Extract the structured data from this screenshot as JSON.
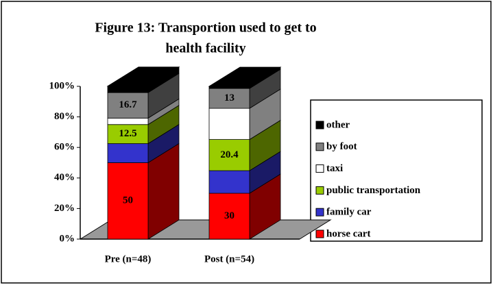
{
  "chart_data": {
    "type": "bar3d_stacked",
    "title": "Figure 13: Transportion used to get to health facility",
    "title_lines": [
      "Figure 13: Transportion used to get to",
      "health facility"
    ],
    "categories": [
      "Pre (n=48)",
      "Post (n=54)"
    ],
    "series": [
      {
        "name": "horse cart",
        "color": "#ff0000",
        "values": [
          50,
          30
        ],
        "value_labels": [
          "50",
          "30"
        ]
      },
      {
        "name": "family car",
        "color": "#3333cc",
        "values": [
          12.5,
          14.8
        ],
        "value_labels": [
          null,
          null
        ]
      },
      {
        "name": "public transportation",
        "color": "#99cc00",
        "values": [
          12.5,
          20.4
        ],
        "value_labels": [
          "12.5",
          "20.4"
        ]
      },
      {
        "name": "taxi",
        "color": "#ffffff",
        "values": [
          4.2,
          20.4
        ],
        "value_labels": [
          null,
          null
        ]
      },
      {
        "name": "by foot",
        "color": "#808080",
        "values": [
          16.7,
          13
        ],
        "value_labels": [
          "16.7",
          "13"
        ]
      },
      {
        "name": "other",
        "color": "#000000",
        "values": [
          4.2,
          1.4
        ],
        "value_labels": [
          null,
          null
        ]
      }
    ],
    "ylim": [
      0,
      100
    ],
    "yticks": [
      {
        "value": 0,
        "label": "0%"
      },
      {
        "value": 20,
        "label": "20%"
      },
      {
        "value": 40,
        "label": "40%"
      },
      {
        "value": 60,
        "label": "60%"
      },
      {
        "value": 80,
        "label": "80%"
      },
      {
        "value": 100,
        "label": "100%"
      }
    ],
    "legend": "right"
  }
}
